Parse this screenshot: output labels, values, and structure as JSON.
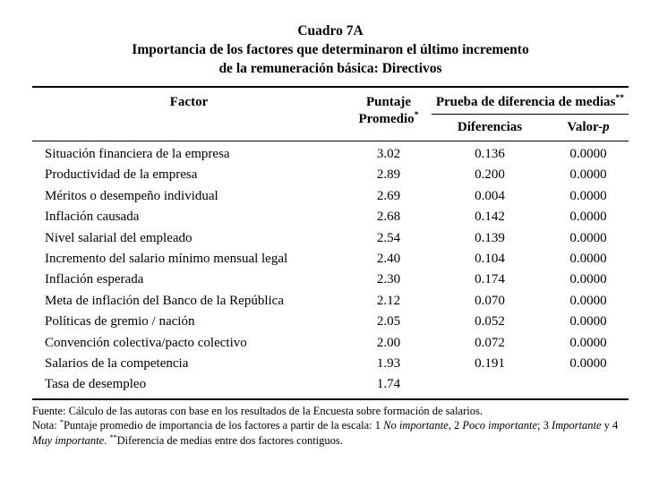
{
  "header": {
    "title": "Cuadro 7A",
    "subtitle_line1": "Importancia de los factores que determinaron el último incremento",
    "subtitle_line2": "de la remuneración básica: Directivos"
  },
  "table": {
    "headers": {
      "factor": "Factor",
      "puntaje_segments": [
        {
          "text": "Puntaje Promedio"
        },
        {
          "text": "*",
          "sup": true
        }
      ],
      "prueba_segments": [
        {
          "text": "Prueba de diferencia de medias"
        },
        {
          "text": "**",
          "sup": true
        }
      ],
      "diferencias": "Diferencias",
      "valor_p_segments": [
        {
          "text": "Valor-"
        },
        {
          "text": "p",
          "italic": true
        }
      ]
    },
    "rows": [
      {
        "factor": "Situación financiera de la empresa",
        "puntaje": "3.02",
        "diferencia": "0.136",
        "valor_p": "0.0000"
      },
      {
        "factor": "Productividad de la empresa",
        "puntaje": "2.89",
        "diferencia": "0.200",
        "valor_p": "0.0000"
      },
      {
        "factor": "Méritos o desempeño individual",
        "puntaje": "2.69",
        "diferencia": "0.004",
        "valor_p": "0.0000"
      },
      {
        "factor": "Inflación causada",
        "puntaje": "2.68",
        "diferencia": "0.142",
        "valor_p": "0.0000"
      },
      {
        "factor": "Nivel salarial del empleado",
        "puntaje": "2.54",
        "diferencia": "0.139",
        "valor_p": "0.0000"
      },
      {
        "factor": "Incremento del salario mínimo mensual legal",
        "puntaje": "2.40",
        "diferencia": "0.104",
        "valor_p": "0.0000"
      },
      {
        "factor": "Inflación esperada",
        "puntaje": "2.30",
        "diferencia": "0.174",
        "valor_p": "0.0000"
      },
      {
        "factor": "Meta de inflación del Banco de la República",
        "puntaje": "2.12",
        "diferencia": "0.070",
        "valor_p": "0.0000"
      },
      {
        "factor": "Políticas de gremio / nación",
        "puntaje": "2.05",
        "diferencia": "0.052",
        "valor_p": "0.0000"
      },
      {
        "factor": "Convención colectiva/pacto colectivo",
        "puntaje": "2.00",
        "diferencia": "0.072",
        "valor_p": "0.0000"
      },
      {
        "factor": "Salarios de la competencia",
        "puntaje": "1.93",
        "diferencia": "0.191",
        "valor_p": "0.0000"
      },
      {
        "factor": "Tasa de desempleo",
        "puntaje": "1.74",
        "diferencia": "",
        "valor_p": ""
      }
    ]
  },
  "footnotes": {
    "fuente": "Fuente: Cálculo de las autoras con base en los resultados de la Encuesta sobre formación de salarios.",
    "nota_segments": [
      {
        "text": "Nota: "
      },
      {
        "text": "*",
        "sup": true
      },
      {
        "text": "Puntaje promedio de importancia de los factores a partir de la escala: 1 "
      },
      {
        "text": "No importante",
        "italic": true
      },
      {
        "text": ", 2 "
      },
      {
        "text": "Poco importante",
        "italic": true
      },
      {
        "text": "; 3 "
      },
      {
        "text": "Importante",
        "italic": true
      },
      {
        "text": " y 4 "
      },
      {
        "text": "Muy importante",
        "italic": true
      },
      {
        "text": ". "
      },
      {
        "text": "**",
        "sup": true
      },
      {
        "text": "Diferencia de medias entre dos factores contiguos."
      }
    ]
  }
}
